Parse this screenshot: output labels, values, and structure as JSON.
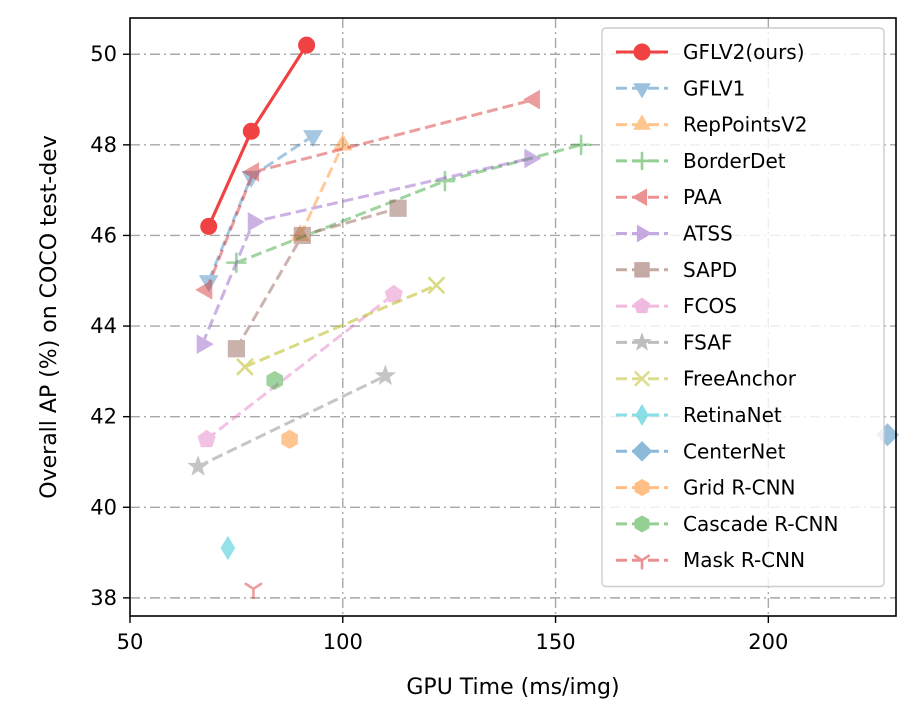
{
  "chart_data": {
    "type": "line",
    "title": "",
    "xlabel": "GPU Time (ms/img)",
    "ylabel": "Overall AP (%) on COCO test-dev",
    "xlim": [
      50,
      230
    ],
    "ylim": [
      37.6,
      50.8
    ],
    "xticks": [
      50,
      100,
      150,
      200
    ],
    "yticks": [
      38,
      40,
      42,
      44,
      46,
      48,
      50
    ],
    "grid": true,
    "legend_position": "top-right",
    "series": [
      {
        "name": "GFLV2(ours)",
        "marker": "circle",
        "color": "#ee2222",
        "line": "solid",
        "opacity": 0.85,
        "points": [
          [
            68.5,
            46.2
          ],
          [
            78.5,
            48.3
          ],
          [
            91.5,
            50.2
          ]
        ]
      },
      {
        "name": "GFLV1",
        "marker": "triangle-down",
        "color": "#3a85c0",
        "line": "dashed",
        "opacity": 0.45,
        "points": [
          [
            68.5,
            45.0
          ],
          [
            78.5,
            47.3
          ],
          [
            93,
            48.2
          ]
        ]
      },
      {
        "name": "RepPointsV2",
        "marker": "triangle-up",
        "color": "#ff8c20",
        "line": "dashed",
        "opacity": 0.45,
        "points": [
          [
            90,
            46.0
          ],
          [
            100,
            48.0
          ]
        ]
      },
      {
        "name": "BorderDet",
        "marker": "plus",
        "color": "#2ca02c",
        "line": "dashed",
        "opacity": 0.45,
        "points": [
          [
            75,
            45.4
          ],
          [
            124,
            47.2
          ],
          [
            156,
            48.0
          ]
        ]
      },
      {
        "name": "PAA",
        "marker": "triangle-left",
        "color": "#d62728",
        "line": "dashed",
        "opacity": 0.45,
        "points": [
          [
            68,
            44.8
          ],
          [
            79,
            47.4
          ],
          [
            145,
            49.0
          ]
        ]
      },
      {
        "name": "ATSS",
        "marker": "triangle-right",
        "color": "#8e56c2",
        "line": "dashed",
        "opacity": 0.45,
        "points": [
          [
            67,
            43.6
          ],
          [
            79,
            46.3
          ],
          [
            144,
            47.7
          ]
        ]
      },
      {
        "name": "SAPD",
        "marker": "square",
        "color": "#8c564b",
        "line": "dashed",
        "opacity": 0.45,
        "points": [
          [
            75,
            43.5
          ],
          [
            90.5,
            46.0
          ],
          [
            113,
            46.6
          ]
        ]
      },
      {
        "name": "FCOS",
        "marker": "pentagon",
        "color": "#e377c2",
        "line": "dashed",
        "opacity": 0.45,
        "points": [
          [
            68,
            41.5
          ],
          [
            112,
            44.7
          ]
        ]
      },
      {
        "name": "FSAF",
        "marker": "star",
        "color": "#7f7f7f",
        "line": "dashed",
        "opacity": 0.45,
        "points": [
          [
            66,
            40.9
          ],
          [
            110,
            42.9
          ]
        ]
      },
      {
        "name": "FreeAnchor",
        "marker": "x",
        "color": "#bcbd22",
        "line": "dashed",
        "opacity": 0.55,
        "points": [
          [
            77,
            43.1
          ],
          [
            122,
            44.9
          ]
        ]
      },
      {
        "name": "RetinaNet",
        "marker": "thin-diamond",
        "color": "#17becf",
        "line": "dashed",
        "opacity": 0.45,
        "points": [
          [
            73,
            39.1
          ]
        ]
      },
      {
        "name": "CenterNet",
        "marker": "diamond",
        "color": "#1f77b4",
        "line": "dashed",
        "opacity": 0.45,
        "points": [
          [
            228,
            41.6
          ]
        ]
      },
      {
        "name": "Grid R-CNN",
        "marker": "hexagon",
        "color": "#ff7f0e",
        "line": "dashed",
        "opacity": 0.45,
        "points": [
          [
            87.5,
            41.5
          ]
        ]
      },
      {
        "name": "Cascade R-CNN",
        "marker": "hexagon",
        "color": "#2ca02c",
        "line": "dashed",
        "opacity": 0.45,
        "points": [
          [
            84,
            42.8
          ]
        ]
      },
      {
        "name": "Mask R-CNN",
        "marker": "tri-down",
        "color": "#d62728",
        "line": "dashed",
        "opacity": 0.45,
        "points": [
          [
            79,
            38.2
          ]
        ]
      }
    ]
  }
}
